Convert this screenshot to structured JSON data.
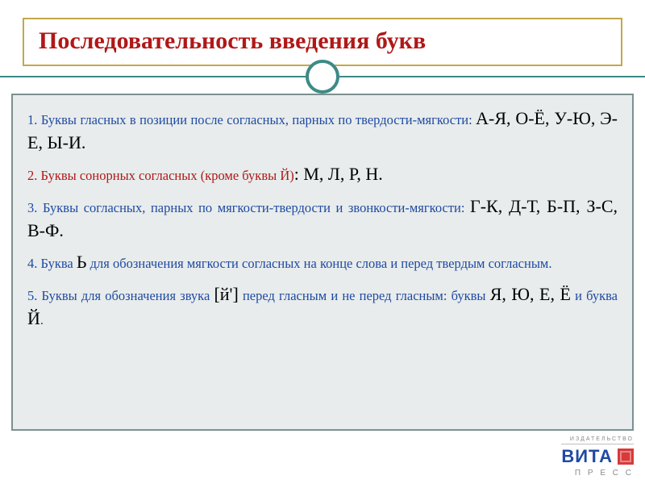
{
  "colors": {
    "title_border": "#c3a84a",
    "title_text": "#b01818",
    "circle_border": "#3d8a86",
    "hline": "#3d8a86",
    "content_border": "#7d9090",
    "content_bg": "#e8ecec",
    "lead_blue": "#1f4aa3",
    "lead_red": "#b01818",
    "logo_word": "#1f4aa3",
    "logo_square": "#d83a3a"
  },
  "title": "Последовательность введения букв",
  "items": [
    {
      "lead": "1. Буквы гласных в позиции после согласных, парных по твердости-мягкости:  ",
      "lead_color": "blue",
      "letters": "А-Я, О-Ё, У-Ю, Э-Е, Ы-И."
    },
    {
      "lead": "2. Буквы сонорных согласных (кроме буквы Й)",
      "lead_color": "red",
      "after_lead": ": ",
      "letters": "М, Л, Р, Н."
    },
    {
      "lead": "3. Буквы согласных, парных по мягкости-твердости и звонкости-мягкости: ",
      "lead_color": "blue",
      "letters": "Г-К, Д-Т, Б-П, З-С, В-Ф."
    },
    {
      "lead_pre": "4. Буква ",
      "soft": "Ь",
      "lead_post": " для обозначения мягкости согласных на конце слова и перед твердым согласным.",
      "lead_color": "blue"
    },
    {
      "lead_pre": "5. Буквы для обозначения звука ",
      "bracket": "[й']",
      "lead_mid": " перед гласным и не перед гласным: буквы ",
      "letters1": "Я, Ю, Е, Ё",
      "lead_and": " и буква ",
      "letters2": "Й",
      "tail": ".",
      "lead_color": "blue"
    }
  ],
  "logo": {
    "top": "ИЗДАТЕЛЬСТВО",
    "word": "ВИТА",
    "sub": "П Р Е С С"
  }
}
